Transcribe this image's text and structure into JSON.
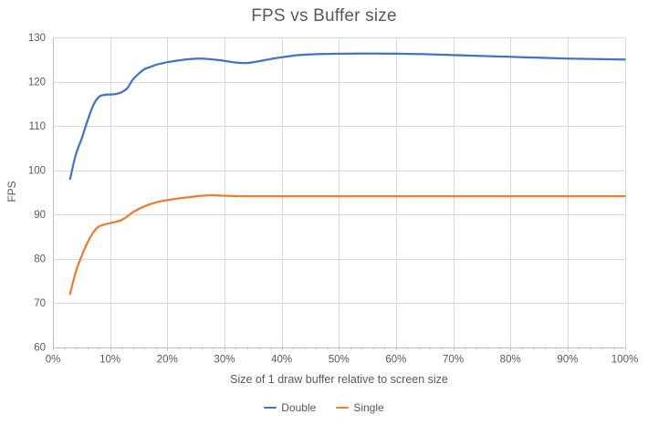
{
  "chart_data": {
    "type": "line",
    "title": "FPS vs Buffer size",
    "xlabel": "Size of 1 draw buffer relative to screen size",
    "ylabel": "FPS",
    "xlim": [
      0,
      100
    ],
    "ylim": [
      60,
      130
    ],
    "x_ticks": [
      0,
      10,
      20,
      30,
      40,
      50,
      60,
      70,
      80,
      90,
      100
    ],
    "x_tick_suffix": "%",
    "x_minor_tick_step": 2,
    "y_ticks": [
      60,
      70,
      80,
      90,
      100,
      110,
      120,
      130
    ],
    "grid": true,
    "smooth_lines": true,
    "legend_position": "bottom-center",
    "series": [
      {
        "name": "Double",
        "color": "#4472C4",
        "points": [
          [
            3,
            98
          ],
          [
            4,
            103.5
          ],
          [
            5,
            107
          ],
          [
            6,
            111
          ],
          [
            7,
            114.5
          ],
          [
            8,
            116.5
          ],
          [
            9,
            117
          ],
          [
            10,
            117.1
          ],
          [
            11,
            117.2
          ],
          [
            12,
            117.6
          ],
          [
            13,
            118.5
          ],
          [
            14,
            120.5
          ],
          [
            15,
            121.8
          ],
          [
            16,
            122.8
          ],
          [
            17,
            123.3
          ],
          [
            18,
            123.8
          ],
          [
            19,
            124.1
          ],
          [
            20,
            124.4
          ],
          [
            22,
            124.8
          ],
          [
            24,
            125.1
          ],
          [
            26,
            125.2
          ],
          [
            28,
            125
          ],
          [
            30,
            124.7
          ],
          [
            32,
            124.3
          ],
          [
            34,
            124.2
          ],
          [
            36,
            124.6
          ],
          [
            38,
            125.1
          ],
          [
            40,
            125.5
          ],
          [
            43,
            126
          ],
          [
            46,
            126.2
          ],
          [
            50,
            126.3
          ],
          [
            55,
            126.35
          ],
          [
            60,
            126.3
          ],
          [
            65,
            126.2
          ],
          [
            70,
            126
          ],
          [
            75,
            125.8
          ],
          [
            80,
            125.6
          ],
          [
            85,
            125.4
          ],
          [
            90,
            125.2
          ],
          [
            95,
            125.1
          ],
          [
            100,
            125
          ]
        ]
      },
      {
        "name": "Single",
        "color": "#ED7D31",
        "points": [
          [
            3,
            72
          ],
          [
            4,
            77
          ],
          [
            5,
            80.5
          ],
          [
            6,
            83.5
          ],
          [
            7,
            85.8
          ],
          [
            8,
            87.2
          ],
          [
            9,
            87.7
          ],
          [
            10,
            88
          ],
          [
            11,
            88.3
          ],
          [
            12,
            88.7
          ],
          [
            13,
            89.5
          ],
          [
            14,
            90.5
          ],
          [
            15,
            91.2
          ],
          [
            16,
            91.8
          ],
          [
            17,
            92.3
          ],
          [
            18,
            92.7
          ],
          [
            19,
            93
          ],
          [
            20,
            93.2
          ],
          [
            22,
            93.6
          ],
          [
            24,
            93.9
          ],
          [
            26,
            94.2
          ],
          [
            28,
            94.3
          ],
          [
            30,
            94.2
          ],
          [
            33,
            94.1
          ],
          [
            36,
            94.1
          ],
          [
            40,
            94.1
          ],
          [
            45,
            94.1
          ],
          [
            50,
            94.1
          ],
          [
            55,
            94.1
          ],
          [
            60,
            94.1
          ],
          [
            65,
            94.1
          ],
          [
            70,
            94.1
          ],
          [
            75,
            94.1
          ],
          [
            80,
            94.1
          ],
          [
            85,
            94.1
          ],
          [
            90,
            94.1
          ],
          [
            95,
            94.1
          ],
          [
            100,
            94.1
          ]
        ]
      }
    ]
  },
  "colors": {
    "background": "#FFFFFF",
    "gridline": "#D9D9D9",
    "axis_line": "#BFBFBF",
    "tick": "#BFBFBF",
    "text": "#595959"
  }
}
